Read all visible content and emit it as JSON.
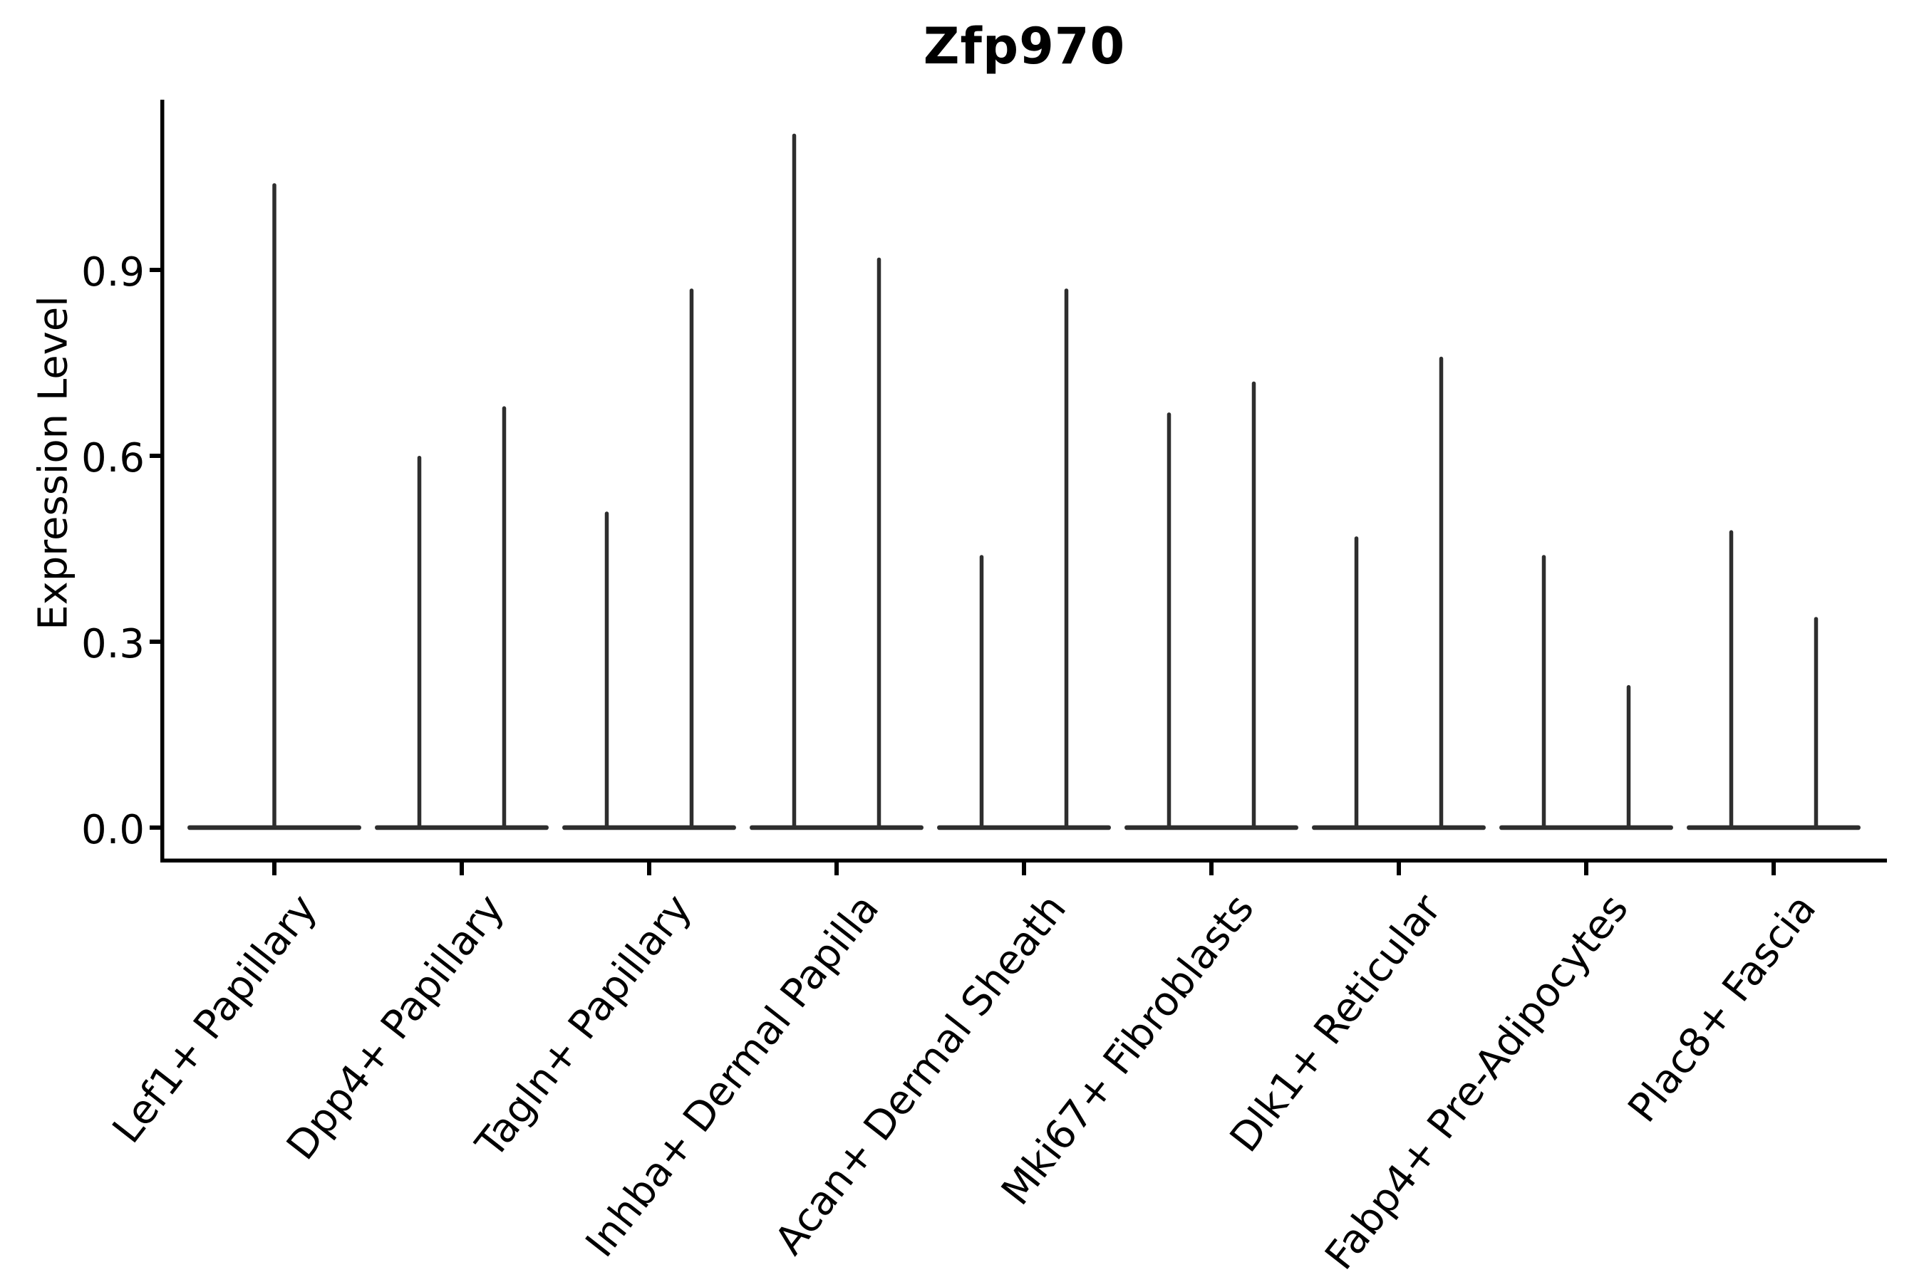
{
  "chart_data": {
    "type": "violin",
    "title": "Zfp970",
    "ylabel": "Expression Level",
    "xlabel": "",
    "grid": false,
    "legend": "none",
    "ylim": [
      -0.06,
      1.18
    ],
    "ytick_labels": [
      "0.0",
      "0.3",
      "0.6",
      "0.9"
    ],
    "ytick_values": [
      0.0,
      0.3,
      0.6,
      0.9
    ],
    "categories": [
      "Lef1+ Papillary",
      "Dpp4+ Papillary",
      "Tagln+ Papillary",
      "Inhba+ Dermal Papilla",
      "Acan+ Dermal Sheath",
      "Mki67+ Fibroblasts",
      "Dlk1+ Reticular",
      "Fabp4+ Pre-Adipocytes",
      "Plac8+ Fascia"
    ],
    "description": "Violin plot of Zfp970 expression per fibroblast subtype; each violin is collapsed at 0 (most cells non-expressing) with a thin spike reaching the maximum expression value.",
    "groups": [
      {
        "category": "Lef1+ Papillary",
        "violin_max": [
          1.04
        ]
      },
      {
        "category": "Dpp4+ Papillary",
        "violin_max": [
          0.6,
          0.68
        ]
      },
      {
        "category": "Tagln+ Papillary",
        "violin_max": [
          0.51,
          0.87
        ]
      },
      {
        "category": "Inhba+ Dermal Papilla",
        "violin_max": [
          1.12,
          0.92
        ]
      },
      {
        "category": "Acan+ Dermal Sheath",
        "violin_max": [
          0.44,
          0.87
        ]
      },
      {
        "category": "Mki67+ Fibroblasts",
        "violin_max": [
          0.67,
          0.72
        ]
      },
      {
        "category": "Dlk1+ Reticular",
        "violin_max": [
          0.47,
          0.76
        ]
      },
      {
        "category": "Fabp4+ Pre-Adipocytes",
        "violin_max": [
          0.44,
          0.23
        ]
      },
      {
        "category": "Plac8+ Fascia",
        "violin_max": [
          0.48,
          0.34
        ]
      }
    ],
    "colors": {
      "violin": "#2e2e2e",
      "axis": "#000000",
      "text": "#000000",
      "background": "#ffffff"
    }
  }
}
